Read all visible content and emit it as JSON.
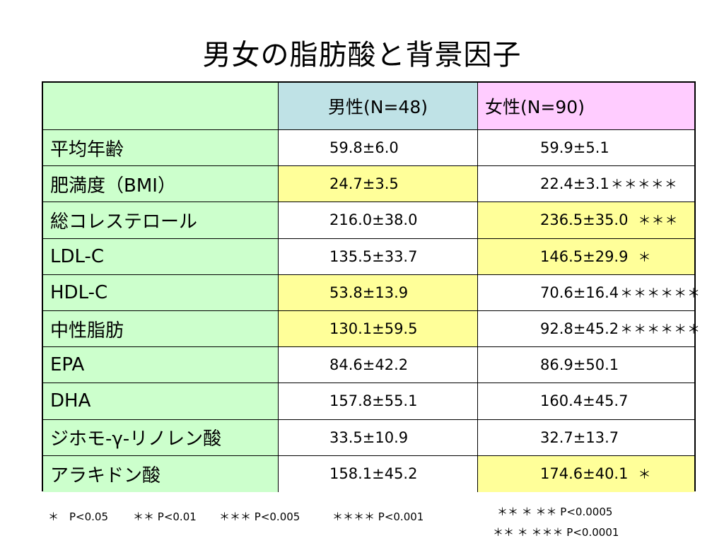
{
  "title": "男女の脂肪酸と背景因子",
  "header": {
    "male": "男性(N=48)",
    "female": "女性(N=90)"
  },
  "rows": [
    {
      "label": "平均年齢",
      "male": "59.8±6.0",
      "female": "59.9±5.1",
      "stars": "",
      "hl": "none"
    },
    {
      "label": "肥満度（BMI）",
      "male": "24.7±3.5",
      "female": "22.4±3.1",
      "stars": "＊＊＊＊＊",
      "hl": "male"
    },
    {
      "label": "総コレステロール",
      "male": "216.0±38.0",
      "female": "236.5±35.0",
      "stars": "＊＊＊",
      "hl": "female"
    },
    {
      "label": "LDL-C",
      "male": "135.5±33.7",
      "female": "146.5±29.9",
      "stars": "＊",
      "hl": "female"
    },
    {
      "label": "HDL-C",
      "male": "53.8±13.9",
      "female": "70.6±16.4",
      "stars": "＊＊＊＊＊＊",
      "hl": "male"
    },
    {
      "label": "中性脂肪",
      "male": "130.1±59.5",
      "female": "92.8±45.2",
      "stars": "＊＊＊＊＊＊",
      "hl": "male"
    },
    {
      "label": "EPA",
      "male": "84.6±42.2",
      "female": "86.9±50.1",
      "stars": "",
      "hl": "none"
    },
    {
      "label": "DHA",
      "male": "157.8±55.1",
      "female": "160.4±45.7",
      "stars": "",
      "hl": "none"
    },
    {
      "label": "ジホモ-γ-リノレン酸",
      "male": "33.5±10.9",
      "female": "32.7±13.7",
      "stars": "",
      "hl": "none"
    },
    {
      "label": "アラキドン酸",
      "male": "158.1±45.2",
      "female": "174.6±40.1",
      "stars": "＊",
      "hl": "female"
    }
  ],
  "footnotes": {
    "p005": "＊　P<0.05",
    "p001": "＊＊ P<0.01",
    "p0005": "＊＊＊ P<0.005",
    "p0001": "＊＊＊＊ P<0.001",
    "p00005": "＊＊ ＊ ＊＊ P<0.0005",
    "p00001": "＊＊ ＊ ＊＊＊ P<0.0001"
  },
  "colors": {
    "label_bg": "#ccffcc",
    "male_header_bg": "#bfe2e6",
    "female_header_bg": "#ffccff",
    "highlight_bg": "#ffff99"
  }
}
